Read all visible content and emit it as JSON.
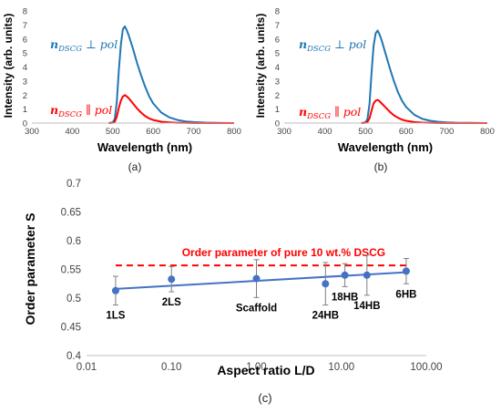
{
  "chart_data": [
    {
      "type": "line",
      "panel_label": "(a)",
      "xlabel": "Wavelength (nm)",
      "ylabel": "Intensity (arb. units)",
      "xlim": [
        300,
        800
      ],
      "ylim": [
        0,
        8
      ],
      "xticks": [
        "300",
        "400",
        "500",
        "600",
        "700",
        "800"
      ],
      "yticks": [
        "0",
        "1",
        "2",
        "3",
        "4",
        "5",
        "6",
        "7",
        "8"
      ],
      "series": [
        {
          "name_main": "n",
          "name_sub": "DSCG",
          "name_rest": " ⊥ pol",
          "color": "#1f77b4",
          "x": [
            490,
            500,
            505,
            510,
            515,
            520,
            525,
            530,
            535,
            540,
            550,
            560,
            570,
            580,
            590,
            600,
            620,
            640,
            660,
            680,
            700,
            730,
            760,
            800
          ],
          "y": [
            0,
            0.05,
            0.3,
            1.5,
            3.8,
            5.6,
            6.7,
            6.9,
            6.6,
            6.2,
            5.3,
            4.3,
            3.4,
            2.6,
            1.9,
            1.4,
            0.75,
            0.4,
            0.22,
            0.12,
            0.07,
            0.03,
            0.01,
            0
          ]
        },
        {
          "name_main": "n",
          "name_sub": "DSCG",
          "name_rest": " ∥ pol",
          "color": "#ff0000",
          "x": [
            490,
            500,
            505,
            510,
            515,
            520,
            525,
            530,
            535,
            540,
            550,
            560,
            570,
            580,
            590,
            600,
            620,
            640,
            660,
            680,
            700,
            730,
            800
          ],
          "y": [
            0,
            0.02,
            0.1,
            0.45,
            1.1,
            1.6,
            1.9,
            2.0,
            1.9,
            1.75,
            1.4,
            1.05,
            0.75,
            0.5,
            0.33,
            0.22,
            0.1,
            0.05,
            0.02,
            0.01,
            0,
            0,
            0
          ]
        }
      ]
    },
    {
      "type": "line",
      "panel_label": "(b)",
      "xlabel": "Wavelength (nm)",
      "ylabel": "Intensity (arb. units)",
      "xlim": [
        300,
        800
      ],
      "ylim": [
        0,
        8
      ],
      "xticks": [
        "300",
        "400",
        "500",
        "600",
        "700",
        "800"
      ],
      "yticks": [
        "0",
        "1",
        "2",
        "3",
        "4",
        "5",
        "6",
        "7",
        "8"
      ],
      "series": [
        {
          "name_main": "n",
          "name_sub": "DSCG",
          "name_rest": " ⊥ pol",
          "color": "#1f77b4",
          "x": [
            490,
            500,
            505,
            510,
            515,
            520,
            525,
            530,
            535,
            540,
            550,
            560,
            570,
            580,
            590,
            600,
            620,
            640,
            660,
            680,
            700,
            730,
            760,
            800
          ],
          "y": [
            0,
            0.05,
            0.3,
            1.4,
            3.6,
            5.5,
            6.4,
            6.6,
            6.3,
            5.9,
            4.9,
            3.9,
            3.0,
            2.2,
            1.6,
            1.15,
            0.6,
            0.3,
            0.16,
            0.09,
            0.05,
            0.02,
            0.01,
            0
          ]
        },
        {
          "name_main": "n",
          "name_sub": "DSCG",
          "name_rest": " ∥ pol",
          "color": "#ff0000",
          "x": [
            490,
            500,
            505,
            510,
            515,
            520,
            525,
            530,
            535,
            540,
            550,
            560,
            570,
            580,
            590,
            600,
            620,
            640,
            660,
            680,
            700,
            730,
            800
          ],
          "y": [
            0,
            0.02,
            0.08,
            0.35,
            0.9,
            1.4,
            1.6,
            1.65,
            1.55,
            1.4,
            1.1,
            0.8,
            0.55,
            0.38,
            0.25,
            0.16,
            0.07,
            0.03,
            0.01,
            0,
            0,
            0,
            0
          ]
        }
      ]
    },
    {
      "type": "scatter",
      "panel_label": "(c)",
      "xlabel": "Aspect ratio L/D",
      "ylabel": "Order parameter S",
      "x_scale": "log",
      "xlim": [
        0.01,
        100
      ],
      "ylim": [
        0.4,
        0.7
      ],
      "xticks": [
        "0.01",
        "0.10",
        "1.00",
        "10.00",
        "100.00"
      ],
      "yticks": [
        "0.4",
        "0.45",
        "0.5",
        "0.55",
        "0.6",
        "0.65",
        "0.7"
      ],
      "points": [
        {
          "label": "1LS",
          "x": 0.022,
          "y": 0.513,
          "err": 0.025
        },
        {
          "label": "2LS",
          "x": 0.1,
          "y": 0.533,
          "err": 0.022
        },
        {
          "label": "Scaffold",
          "x": 1.0,
          "y": 0.534,
          "err": 0.033
        },
        {
          "label": "24HB",
          "x": 6.5,
          "y": 0.525,
          "err": 0.037
        },
        {
          "label": "18HB",
          "x": 11.0,
          "y": 0.54,
          "err": 0.02
        },
        {
          "label": "14HB",
          "x": 20.0,
          "y": 0.54,
          "err": 0.035
        },
        {
          "label": "6HB",
          "x": 58.0,
          "y": 0.547,
          "err": 0.022
        }
      ],
      "fit_line": {
        "x": [
          0.022,
          58.0
        ],
        "y": [
          0.516,
          0.545
        ]
      },
      "reference": {
        "label": "Order parameter  of pure 10 wt.% DSCG",
        "y": 0.557,
        "x": [
          0.022,
          58.0
        ]
      },
      "colors": {
        "points": "#4472c4",
        "fit": "#4472c4",
        "reference": "#ff0000",
        "errorbar": "#7f7f7f"
      }
    }
  ]
}
